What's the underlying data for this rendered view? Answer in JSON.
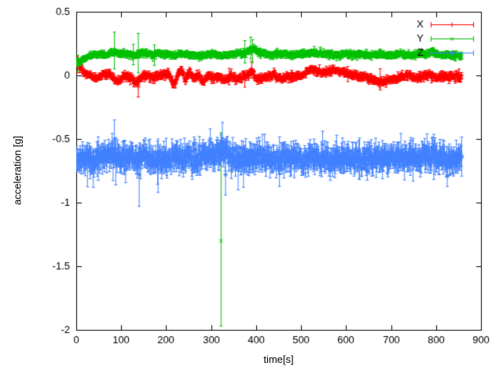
{
  "chart_data": {
    "type": "scatter",
    "title": "",
    "xlabel": "time[s]",
    "ylabel": "acceleration [g]",
    "xlim": [
      0,
      900
    ],
    "ylim": [
      -2,
      0.5
    ],
    "xticks": [
      0,
      100,
      200,
      300,
      400,
      500,
      600,
      700,
      800,
      900
    ],
    "yticks": [
      {
        "v": 0.5,
        "label": "0.5"
      },
      {
        "v": 0,
        "label": "0"
      },
      {
        "v": -0.5,
        "label": "-0.5"
      },
      {
        "v": -1,
        "label": "-1"
      },
      {
        "v": -1.5,
        "label": "-1.5"
      },
      {
        "v": -2,
        "label": "-2"
      }
    ],
    "grid": false,
    "legend_position": "top-right",
    "axis_color": "#000000",
    "background": "#ffffff",
    "series": [
      {
        "name": "X",
        "color": "#ff0000",
        "marker": "plus",
        "style": "yerrorbars",
        "seed": 101,
        "t_start": 0,
        "t_end": 857,
        "dt": 1,
        "noise": 0.011,
        "err_mean": 0.015,
        "err_var": 0.008,
        "tail_prob": 0.01,
        "tail_scale": 0.05,
        "baseline": [
          [
            0,
            0.1
          ],
          [
            8,
            0.07
          ],
          [
            18,
            0.02
          ],
          [
            30,
            0.0
          ],
          [
            45,
            -0.02
          ],
          [
            60,
            0.01
          ],
          [
            75,
            0.02
          ],
          [
            85,
            -0.03
          ],
          [
            95,
            -0.05
          ],
          [
            105,
            0.0
          ],
          [
            115,
            -0.01
          ],
          [
            125,
            -0.03
          ],
          [
            135,
            -0.06
          ],
          [
            145,
            -0.01
          ],
          [
            160,
            0.0
          ],
          [
            175,
            -0.02
          ],
          [
            190,
            0.01
          ],
          [
            205,
            0.02
          ],
          [
            213,
            -0.05
          ],
          [
            220,
            -0.06
          ],
          [
            228,
            0.02
          ],
          [
            235,
            0.03
          ],
          [
            243,
            -0.04
          ],
          [
            252,
            0.03
          ],
          [
            262,
            -0.03
          ],
          [
            272,
            0.01
          ],
          [
            282,
            -0.05
          ],
          [
            292,
            0.0
          ],
          [
            305,
            -0.02
          ],
          [
            318,
            -0.01
          ],
          [
            330,
            -0.04
          ],
          [
            342,
            0.0
          ],
          [
            355,
            -0.03
          ],
          [
            368,
            -0.01
          ],
          [
            380,
            0.0
          ],
          [
            390,
            0.04
          ],
          [
            398,
            -0.02
          ],
          [
            410,
            -0.03
          ],
          [
            425,
            -0.01
          ],
          [
            440,
            0.0
          ],
          [
            455,
            -0.02
          ],
          [
            470,
            -0.01
          ],
          [
            485,
            -0.02
          ],
          [
            500,
            0.0
          ],
          [
            512,
            0.03
          ],
          [
            522,
            0.05
          ],
          [
            532,
            0.04
          ],
          [
            545,
            0.02
          ],
          [
            560,
            0.03
          ],
          [
            575,
            0.04
          ],
          [
            590,
            0.03
          ],
          [
            605,
            0.01
          ],
          [
            620,
            0.0
          ],
          [
            635,
            -0.01
          ],
          [
            650,
            -0.02
          ],
          [
            665,
            -0.04
          ],
          [
            680,
            -0.05
          ],
          [
            695,
            -0.04
          ],
          [
            710,
            -0.03
          ],
          [
            725,
            -0.01
          ],
          [
            740,
            0.0
          ],
          [
            755,
            -0.02
          ],
          [
            770,
            -0.01
          ],
          [
            785,
            0.01
          ],
          [
            800,
            -0.02
          ],
          [
            815,
            0.0
          ],
          [
            830,
            -0.01
          ],
          [
            845,
            -0.01
          ],
          [
            857,
            -0.01
          ]
        ],
        "outliers": [
          {
            "t": 3,
            "y": 0.1,
            "lo": 0.02,
            "hi": 0.15
          },
          {
            "t": 138,
            "y": -0.09,
            "lo": -0.17,
            "hi": -0.01
          },
          {
            "t": 390,
            "y": 0.05,
            "lo": -0.02,
            "hi": 0.11
          }
        ]
      },
      {
        "name": "Y",
        "color": "#00c000",
        "marker": "cross",
        "style": "yerrorbars",
        "seed": 202,
        "t_start": 0,
        "t_end": 857,
        "dt": 1,
        "noise": 0.008,
        "err_mean": 0.014,
        "err_var": 0.007,
        "tail_prob": 0.008,
        "tail_scale": 0.07,
        "baseline": [
          [
            0,
            0.1
          ],
          [
            10,
            0.11
          ],
          [
            20,
            0.13
          ],
          [
            35,
            0.16
          ],
          [
            50,
            0.17
          ],
          [
            65,
            0.16
          ],
          [
            80,
            0.18
          ],
          [
            95,
            0.17
          ],
          [
            110,
            0.17
          ],
          [
            125,
            0.16
          ],
          [
            140,
            0.17
          ],
          [
            155,
            0.18
          ],
          [
            170,
            0.16
          ],
          [
            185,
            0.17
          ],
          [
            200,
            0.17
          ],
          [
            215,
            0.16
          ],
          [
            230,
            0.17
          ],
          [
            245,
            0.17
          ],
          [
            260,
            0.16
          ],
          [
            275,
            0.15
          ],
          [
            290,
            0.16
          ],
          [
            305,
            0.17
          ],
          [
            322,
            0.16
          ],
          [
            340,
            0.16
          ],
          [
            355,
            0.17
          ],
          [
            370,
            0.17
          ],
          [
            385,
            0.2
          ],
          [
            395,
            0.21
          ],
          [
            405,
            0.18
          ],
          [
            420,
            0.17
          ],
          [
            435,
            0.16
          ],
          [
            450,
            0.17
          ],
          [
            465,
            0.17
          ],
          [
            480,
            0.16
          ],
          [
            495,
            0.17
          ],
          [
            510,
            0.17
          ],
          [
            525,
            0.18
          ],
          [
            540,
            0.17
          ],
          [
            555,
            0.17
          ],
          [
            570,
            0.16
          ],
          [
            585,
            0.16
          ],
          [
            600,
            0.17
          ],
          [
            615,
            0.16
          ],
          [
            630,
            0.17
          ],
          [
            645,
            0.16
          ],
          [
            660,
            0.16
          ],
          [
            675,
            0.17
          ],
          [
            690,
            0.16
          ],
          [
            705,
            0.16
          ],
          [
            720,
            0.17
          ],
          [
            735,
            0.16
          ],
          [
            750,
            0.16
          ],
          [
            765,
            0.17
          ],
          [
            780,
            0.17
          ],
          [
            792,
            0.19
          ],
          [
            800,
            0.17
          ],
          [
            815,
            0.16
          ],
          [
            830,
            0.16
          ],
          [
            845,
            0.16
          ],
          [
            857,
            0.15
          ]
        ],
        "outliers": [
          {
            "t": 3,
            "y": 0.1,
            "lo": 0.03,
            "hi": 0.16
          },
          {
            "t": 85,
            "y": 0.18,
            "lo": 0.05,
            "hi": 0.34
          },
          {
            "t": 138,
            "y": 0.17,
            "lo": 0.02,
            "hi": 0.33
          },
          {
            "t": 322,
            "y": -1.3,
            "lo": -1.97,
            "hi": -0.45
          },
          {
            "t": 388,
            "y": 0.22,
            "lo": 0.13,
            "hi": 0.3
          },
          {
            "t": 392,
            "y": 0.2,
            "lo": 0.1,
            "hi": 0.28
          }
        ]
      },
      {
        "name": "Z",
        "color": "#4080ff",
        "marker": "star",
        "style": "yerrorbars",
        "seed": 303,
        "t_start": 0,
        "t_end": 857,
        "dt": 1,
        "noise": 0.035,
        "err_mean": 0.055,
        "err_var": 0.025,
        "tail_prob": 0.02,
        "tail_scale": 0.12,
        "baseline": [
          [
            0,
            -0.63
          ],
          [
            10,
            -0.66
          ],
          [
            25,
            -0.65
          ],
          [
            40,
            -0.66
          ],
          [
            55,
            -0.65
          ],
          [
            70,
            -0.64
          ],
          [
            85,
            -0.62
          ],
          [
            100,
            -0.66
          ],
          [
            115,
            -0.65
          ],
          [
            130,
            -0.66
          ],
          [
            145,
            -0.66
          ],
          [
            160,
            -0.65
          ],
          [
            175,
            -0.66
          ],
          [
            190,
            -0.65
          ],
          [
            205,
            -0.66
          ],
          [
            220,
            -0.65
          ],
          [
            235,
            -0.66
          ],
          [
            250,
            -0.65
          ],
          [
            265,
            -0.66
          ],
          [
            280,
            -0.65
          ],
          [
            295,
            -0.62
          ],
          [
            310,
            -0.63
          ],
          [
            325,
            -0.6
          ],
          [
            340,
            -0.64
          ],
          [
            355,
            -0.66
          ],
          [
            370,
            -0.65
          ],
          [
            385,
            -0.66
          ],
          [
            400,
            -0.66
          ],
          [
            415,
            -0.65
          ],
          [
            430,
            -0.66
          ],
          [
            445,
            -0.66
          ],
          [
            460,
            -0.65
          ],
          [
            475,
            -0.66
          ],
          [
            490,
            -0.66
          ],
          [
            505,
            -0.66
          ],
          [
            520,
            -0.65
          ],
          [
            535,
            -0.66
          ],
          [
            550,
            -0.65
          ],
          [
            565,
            -0.66
          ],
          [
            580,
            -0.65
          ],
          [
            595,
            -0.65
          ],
          [
            610,
            -0.65
          ],
          [
            625,
            -0.66
          ],
          [
            640,
            -0.65
          ],
          [
            655,
            -0.65
          ],
          [
            670,
            -0.64
          ],
          [
            685,
            -0.65
          ],
          [
            700,
            -0.65
          ],
          [
            715,
            -0.64
          ],
          [
            730,
            -0.65
          ],
          [
            745,
            -0.65
          ],
          [
            760,
            -0.66
          ],
          [
            775,
            -0.65
          ],
          [
            790,
            -0.64
          ],
          [
            805,
            -0.65
          ],
          [
            820,
            -0.65
          ],
          [
            835,
            -0.65
          ],
          [
            850,
            -0.65
          ],
          [
            857,
            -0.65
          ]
        ],
        "outliers": [
          {
            "t": 38,
            "y": -0.72,
            "lo": -0.88,
            "hi": -0.58
          },
          {
            "t": 85,
            "y": -0.5,
            "lo": -0.62,
            "hi": -0.35
          },
          {
            "t": 88,
            "y": -0.68,
            "lo": -0.86,
            "hi": -0.52
          },
          {
            "t": 140,
            "y": -0.78,
            "lo": -1.03,
            "hi": -0.58
          },
          {
            "t": 182,
            "y": -0.7,
            "lo": -0.92,
            "hi": -0.5
          },
          {
            "t": 298,
            "y": -0.5,
            "lo": -0.62,
            "hi": -0.42
          },
          {
            "t": 325,
            "y": -0.52,
            "lo": -0.66,
            "hi": -0.37
          },
          {
            "t": 332,
            "y": -0.78,
            "lo": -0.94,
            "hi": -0.6
          },
          {
            "t": 360,
            "y": -0.72,
            "lo": -0.9,
            "hi": -0.55
          },
          {
            "t": 372,
            "y": -0.7,
            "lo": -0.88,
            "hi": -0.52
          }
        ]
      }
    ]
  }
}
